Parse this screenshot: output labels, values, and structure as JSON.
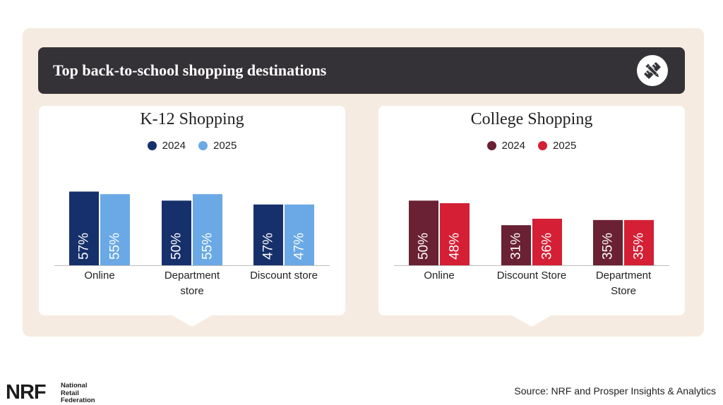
{
  "header": {
    "title": "Top back-to-school shopping destinations",
    "icon": "pencil-ruler-icon"
  },
  "chart_data": [
    {
      "type": "bar",
      "title": "K-12 Shopping",
      "categories": [
        "Online",
        "Department store",
        "Discount store"
      ],
      "category_lines": [
        [
          "Online"
        ],
        [
          "Department",
          "store"
        ],
        [
          "Discount store"
        ]
      ],
      "series": [
        {
          "name": "2024",
          "color": "#16306b",
          "values": [
            57,
            50,
            47
          ]
        },
        {
          "name": "2025",
          "color": "#6aa9e6",
          "values": [
            55,
            55,
            47
          ]
        }
      ],
      "value_suffix": "%",
      "ylim": [
        0,
        60
      ],
      "grid": false,
      "legend": "top-center"
    },
    {
      "type": "bar",
      "title": "College Shopping",
      "categories": [
        "Online",
        "Discount Store",
        "Department Store"
      ],
      "category_lines": [
        [
          "Online"
        ],
        [
          "Discount Store"
        ],
        [
          "Department",
          "Store"
        ]
      ],
      "series": [
        {
          "name": "2024",
          "color": "#6a2133",
          "values": [
            50,
            31,
            35
          ]
        },
        {
          "name": "2025",
          "color": "#d41f35",
          "values": [
            48,
            36,
            35
          ]
        }
      ],
      "value_suffix": "%",
      "ylim": [
        0,
        60
      ],
      "grid": false,
      "legend": "top-center"
    }
  ],
  "footer": {
    "source": "Source: NRF and Prosper Insights & Analytics",
    "logo_mark": "NRF",
    "logo_lines": [
      "National",
      "Retail",
      "Federation"
    ]
  }
}
